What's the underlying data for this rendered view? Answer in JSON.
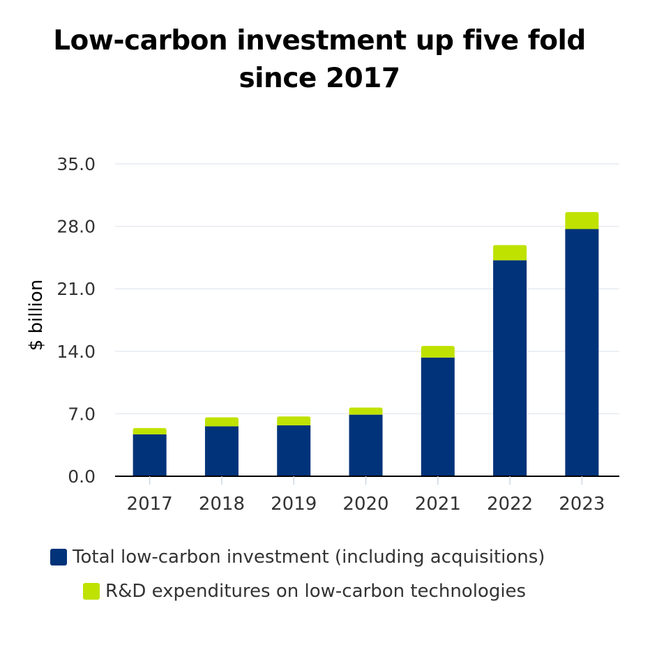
{
  "chart_data": {
    "type": "bar",
    "stacked": true,
    "title_lines": [
      "Low-carbon investment up five fold",
      "since 2017"
    ],
    "ylabel": "$ billion",
    "xlabel": "",
    "ylim": [
      0,
      35
    ],
    "yticks": [
      "0.0",
      "7.0",
      "14.0",
      "21.0",
      "28.0",
      "35.0"
    ],
    "categories": [
      "2017",
      "2018",
      "2019",
      "2020",
      "2021",
      "2022",
      "2023"
    ],
    "series": [
      {
        "name": "Total low-carbon investment (including acquisitions)",
        "color": "#00337a",
        "values": [
          4.7,
          5.6,
          5.7,
          6.9,
          13.3,
          24.2,
          27.7
        ]
      },
      {
        "name": "R&D expenditures on low-carbon technologies",
        "color": "#bfe200",
        "values": [
          0.7,
          1.0,
          1.0,
          0.8,
          1.3,
          1.7,
          1.9
        ]
      }
    ],
    "grid": true,
    "legend_position": "bottom"
  }
}
